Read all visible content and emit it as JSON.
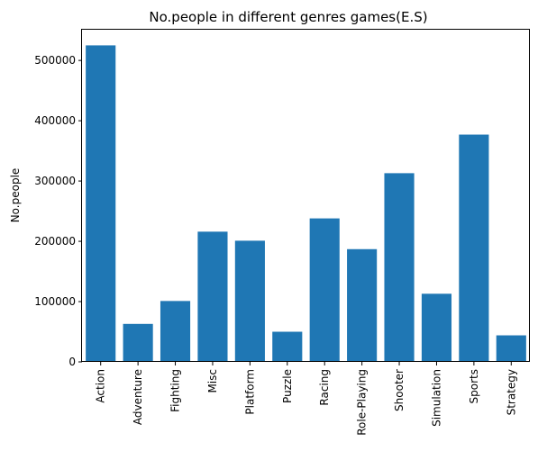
{
  "chart_data": {
    "type": "bar",
    "title": "No.people in different genres games(E.S)",
    "xlabel": "",
    "ylabel": "No.people",
    "categories": [
      "Action",
      "Adventure",
      "Fighting",
      "Misc",
      "Platform",
      "Puzzle",
      "Racing",
      "Role-Playing",
      "Shooter",
      "Simulation",
      "Sports",
      "Strategy"
    ],
    "values": [
      525000,
      63000,
      101000,
      216000,
      201000,
      50000,
      238000,
      187000,
      313000,
      113000,
      377000,
      44000
    ],
    "ylim": [
      0,
      551000
    ],
    "yticks": [
      0,
      100000,
      200000,
      300000,
      400000,
      500000
    ],
    "bar_color": "#1f77b4",
    "grid": false,
    "legend": "none"
  }
}
